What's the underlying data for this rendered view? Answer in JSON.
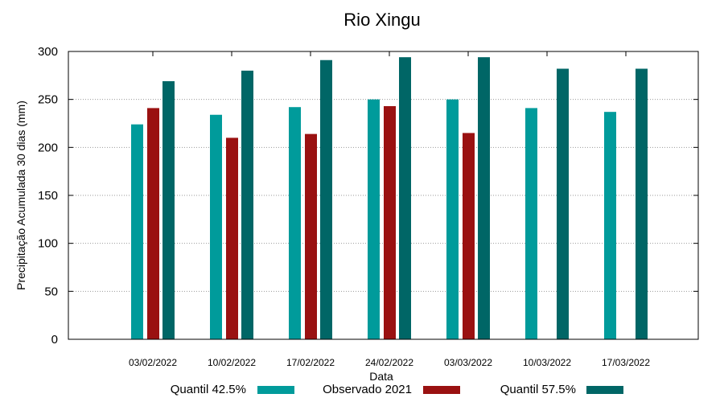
{
  "chart_data": {
    "type": "bar",
    "title": "Rio Xingu",
    "xlabel": "Data",
    "ylabel": "Precipitação Acumulada 30 dias (mm)",
    "ylim": [
      0,
      300
    ],
    "yticks": [
      0,
      50,
      100,
      150,
      200,
      250,
      300
    ],
    "grid": true,
    "legend_position": "bottom",
    "categories": [
      "03/02/2022",
      "10/02/2022",
      "17/02/2022",
      "24/02/2022",
      "03/03/2022",
      "10/03/2022",
      "17/03/2022"
    ],
    "series": [
      {
        "name": "Quantil 42.5%",
        "color": "#009b9b",
        "values": [
          224,
          234,
          242,
          250,
          250,
          241,
          237
        ]
      },
      {
        "name": "Observado 2021",
        "color": "#9a1111",
        "values": [
          241,
          210,
          214,
          243,
          215,
          null,
          null
        ]
      },
      {
        "name": "Quantil 57.5%",
        "color": "#006666",
        "values": [
          269,
          280,
          291,
          294,
          294,
          282,
          282
        ]
      }
    ]
  }
}
